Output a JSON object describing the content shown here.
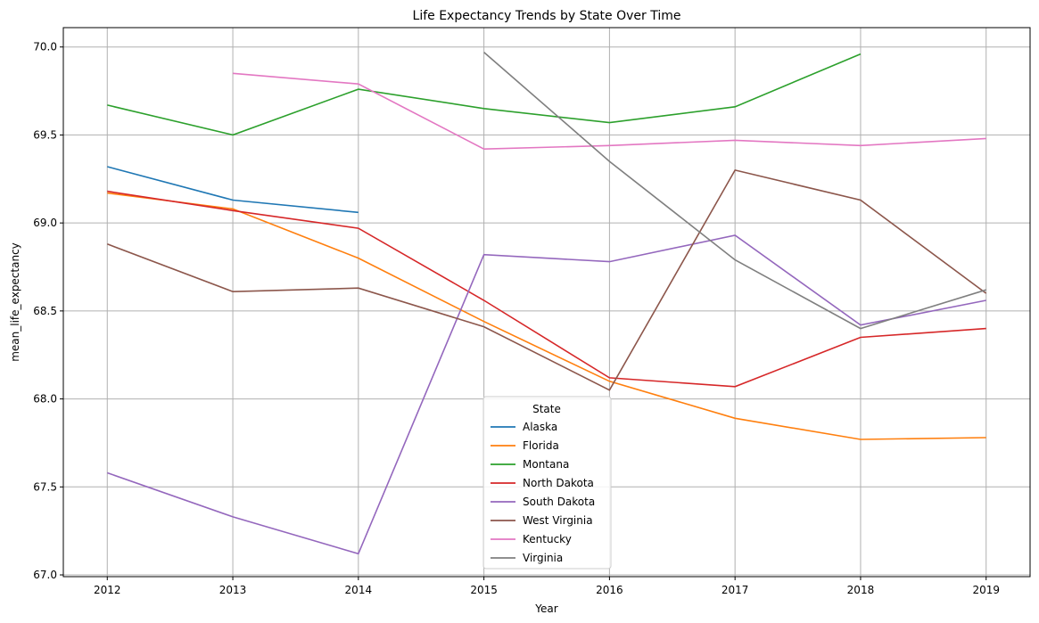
{
  "chart_data": {
    "type": "line",
    "title": "Life Expectancy Trends by State Over Time",
    "xlabel": "Year",
    "ylabel": "mean_life_expectancy",
    "x": [
      2012,
      2013,
      2014,
      2015,
      2016,
      2017,
      2018,
      2019
    ],
    "xlim": [
      2011.65,
      2019.35
    ],
    "ylim": [
      66.99,
      70.11
    ],
    "yticks": [
      "67.0",
      "67.5",
      "68.0",
      "68.5",
      "69.0",
      "69.5",
      "70.0"
    ],
    "grid": true,
    "legend": {
      "title": "State",
      "placement": "lower-center"
    },
    "series": [
      {
        "name": "Alaska",
        "color": "#1f77b4",
        "values": [
          69.32,
          69.13,
          69.06,
          null,
          null,
          null,
          null,
          null
        ]
      },
      {
        "name": "Florida",
        "color": "#ff7f0e",
        "values": [
          69.17,
          69.08,
          68.8,
          68.44,
          68.1,
          67.89,
          67.77,
          67.78
        ]
      },
      {
        "name": "Montana",
        "color": "#2ca02c",
        "values": [
          69.67,
          69.5,
          69.76,
          69.65,
          69.57,
          69.66,
          69.96,
          null
        ]
      },
      {
        "name": "North Dakota",
        "color": "#d62728",
        "values": [
          69.18,
          69.07,
          68.97,
          68.56,
          68.12,
          68.07,
          68.35,
          68.4
        ]
      },
      {
        "name": "South Dakota",
        "color": "#9467bd",
        "values": [
          67.58,
          67.33,
          67.12,
          68.82,
          68.78,
          68.93,
          68.42,
          68.56
        ]
      },
      {
        "name": "West Virginia",
        "color": "#8c564b",
        "values": [
          68.88,
          68.61,
          68.63,
          68.41,
          68.05,
          69.3,
          69.13,
          68.6
        ]
      },
      {
        "name": "Kentucky",
        "color": "#e377c2",
        "values": [
          null,
          69.85,
          69.79,
          69.42,
          69.44,
          69.47,
          69.44,
          69.48
        ]
      },
      {
        "name": "Virginia",
        "color": "#7f7f7f",
        "values": [
          null,
          null,
          null,
          69.97,
          69.35,
          68.79,
          68.4,
          68.62
        ]
      }
    ]
  }
}
